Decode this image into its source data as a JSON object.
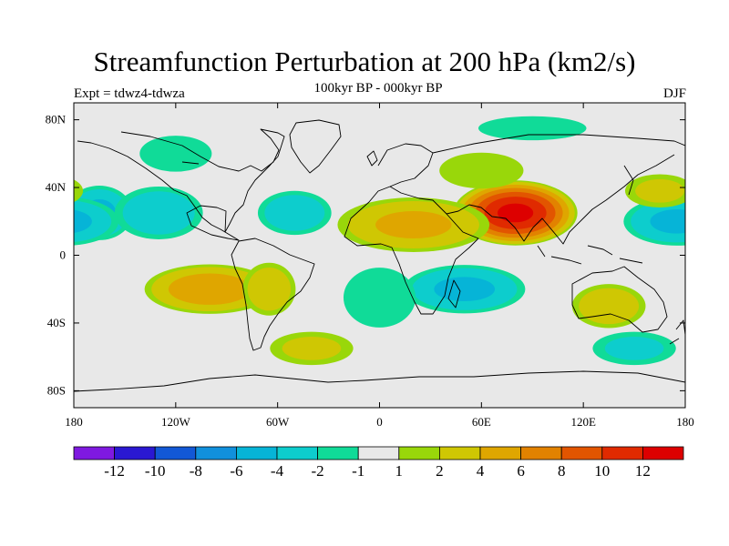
{
  "title": "Streamfunction Perturbation at 200 hPa (km2/s)",
  "subtitle": "100kyr BP - 000kyr BP",
  "left_label": "Expt = tdwz4-tdwza",
  "right_label": "DJF",
  "map": {
    "lon_range": [
      -180,
      180
    ],
    "lat_range": [
      -90,
      90
    ],
    "lon_ticks": [
      {
        "value": -180,
        "label": "180"
      },
      {
        "value": -120,
        "label": "120W"
      },
      {
        "value": -60,
        "label": "60W"
      },
      {
        "value": 0,
        "label": "0"
      },
      {
        "value": 60,
        "label": "60E"
      },
      {
        "value": 120,
        "label": "120E"
      },
      {
        "value": 180,
        "label": "180"
      }
    ],
    "lat_ticks": [
      {
        "value": 80,
        "label": "80N"
      },
      {
        "value": 40,
        "label": "40N"
      },
      {
        "value": 0,
        "label": "0"
      },
      {
        "value": -40,
        "label": "40S"
      },
      {
        "value": -80,
        "label": "80S"
      }
    ],
    "background_color": "#e8e8e8",
    "anomaly_centers": [
      {
        "lon": 80,
        "lat": 25,
        "value": 13,
        "rx": 38,
        "ry": 20
      },
      {
        "lon": 20,
        "lat": 18,
        "value": 5,
        "rx": 50,
        "ry": 18
      },
      {
        "lon": -100,
        "lat": -20,
        "value": 6,
        "rx": 42,
        "ry": 16
      },
      {
        "lon": -65,
        "lat": -20,
        "value": 4,
        "rx": 18,
        "ry": 18
      },
      {
        "lon": -165,
        "lat": 25,
        "value": -5,
        "rx": 22,
        "ry": 18
      },
      {
        "lon": -130,
        "lat": 25,
        "value": -4,
        "rx": 30,
        "ry": 18
      },
      {
        "lon": -50,
        "lat": 25,
        "value": -4,
        "rx": 25,
        "ry": 15
      },
      {
        "lon": 175,
        "lat": 20,
        "value": -5,
        "rx": 35,
        "ry": 16
      },
      {
        "lon": 50,
        "lat": -20,
        "value": -5,
        "rx": 40,
        "ry": 16
      },
      {
        "lon": 135,
        "lat": -30,
        "value": 4,
        "rx": 25,
        "ry": 15
      },
      {
        "lon": 0,
        "lat": -25,
        "value": -2,
        "rx": 30,
        "ry": 25
      },
      {
        "lon": 165,
        "lat": 38,
        "value": 3,
        "rx": 25,
        "ry": 12
      },
      {
        "lon": 60,
        "lat": 50,
        "value": 2,
        "rx": 35,
        "ry": 15
      },
      {
        "lon": 150,
        "lat": -55,
        "value": -3,
        "rx": 30,
        "ry": 12
      },
      {
        "lon": -40,
        "lat": -55,
        "value": 3,
        "rx": 30,
        "ry": 12
      },
      {
        "lon": -120,
        "lat": 60,
        "value": -2,
        "rx": 30,
        "ry": 15
      },
      {
        "lon": 90,
        "lat": 75,
        "value": -2,
        "rx": 45,
        "ry": 10
      }
    ]
  },
  "colorbar": {
    "colors": [
      "#7f19e0",
      "#2a18d2",
      "#1258d6",
      "#1190dc",
      "#06b4d7",
      "#0dcdcd",
      "#10db98",
      "#e8e8e8",
      "#99d70a",
      "#cfc703",
      "#dfa600",
      "#e28200",
      "#e25500",
      "#e02a00",
      "#dd0000"
    ],
    "levels": [
      -14,
      -12,
      -10,
      -8,
      -6,
      -4,
      -2,
      -1,
      1,
      2,
      4,
      6,
      8,
      10,
      12,
      14
    ],
    "labels": [
      "-12",
      "-10",
      "-8",
      "-6",
      "-4",
      "-2",
      "-1",
      "1",
      "2",
      "4",
      "6",
      "8",
      "10",
      "12"
    ]
  }
}
